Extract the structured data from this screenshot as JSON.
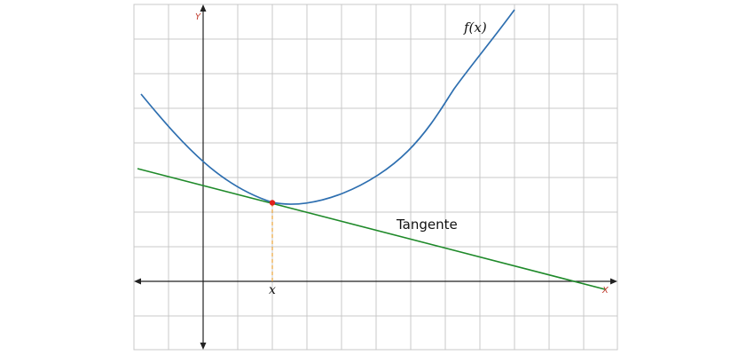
{
  "labels": {
    "y_axis": "Y",
    "x_axis": "X",
    "x_point": "x",
    "function": "f(x)",
    "tangent": "Tangente"
  },
  "colors": {
    "grid": "#c8c8c8",
    "axis": "#222222",
    "curve": "#2e6fb0",
    "tangent": "#1f8a2a",
    "point": "#e0211b",
    "dashed": "#e8a33a",
    "axis_letter": "#c0392b",
    "text": "#111111"
  }
}
